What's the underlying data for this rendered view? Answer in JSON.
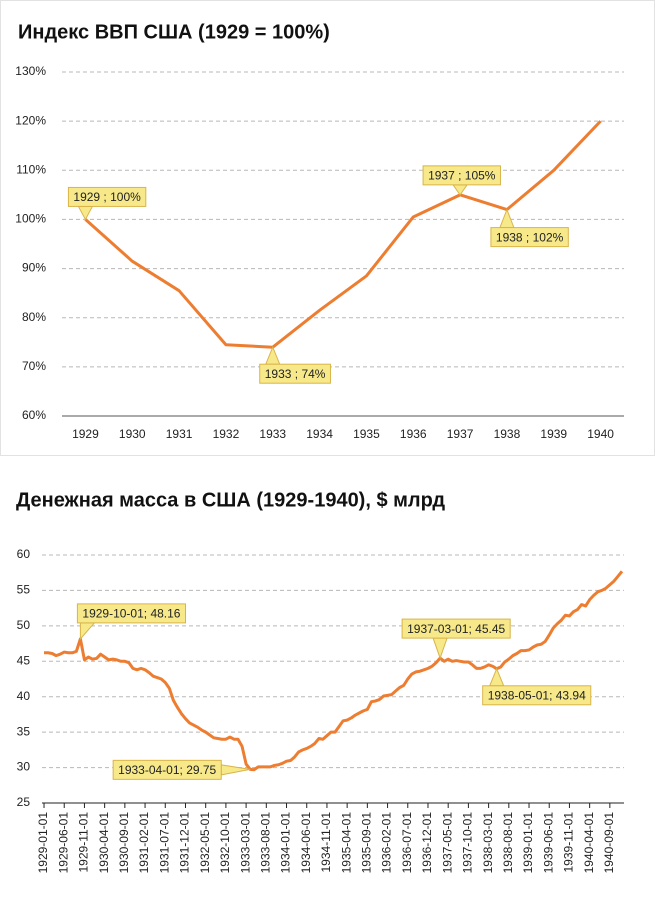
{
  "chart_data": [
    {
      "type": "line",
      "title": "Индекс ВВП США (1929 = 100%)",
      "categories": [
        "1929",
        "1930",
        "1931",
        "1932",
        "1933",
        "1934",
        "1935",
        "1936",
        "1937",
        "1938",
        "1939",
        "1940"
      ],
      "values": [
        100,
        91.5,
        85.5,
        74.5,
        74,
        81.5,
        88.5,
        100.5,
        105,
        102,
        110,
        120
      ],
      "value_labels": [
        "1929 ; 100%",
        null,
        null,
        null,
        "1933 ; 74%",
        null,
        null,
        null,
        "1937 ; 105%",
        "1938 ; 102%",
        null,
        null
      ],
      "color": "#ed7d31",
      "ylim": [
        60,
        130
      ],
      "yticks": [
        {
          "value": 60,
          "label": "60%"
        },
        {
          "value": 70,
          "label": "70%"
        },
        {
          "value": 80,
          "label": "80%"
        },
        {
          "value": 90,
          "label": "90%"
        },
        {
          "value": 100,
          "label": "100%"
        },
        {
          "value": 110,
          "label": "110%"
        },
        {
          "value": 120,
          "label": "120%"
        },
        {
          "value": 130,
          "label": "130%"
        }
      ],
      "grid": true
    },
    {
      "type": "line",
      "title": "Денежная масса в США (1929-1940), $ млрд",
      "categories": [
        "1929-01-01",
        null,
        null,
        null,
        null,
        "1929-06-01",
        null,
        null,
        null,
        null,
        "1929-11-01",
        null,
        null,
        null,
        null,
        "1930-04-01",
        null,
        null,
        null,
        null,
        "1930-09-01",
        null,
        null,
        null,
        null,
        "1931-02-01",
        null,
        null,
        null,
        null,
        "1931-07-01",
        null,
        null,
        null,
        null,
        "1931-12-01",
        null,
        null,
        null,
        null,
        "1932-05-01",
        null,
        null,
        null,
        null,
        "1932-10-01",
        null,
        null,
        null,
        null,
        "1933-03-01",
        null,
        null,
        null,
        null,
        "1933-08-01",
        null,
        null,
        null,
        null,
        "1934-01-01",
        null,
        null,
        null,
        null,
        "1934-06-01",
        null,
        null,
        null,
        null,
        "1934-11-01",
        null,
        null,
        null,
        null,
        "1935-04-01",
        null,
        null,
        null,
        null,
        "1935-09-01",
        null,
        null,
        null,
        null,
        "1936-02-01",
        null,
        null,
        null,
        null,
        "1936-07-01",
        null,
        null,
        null,
        null,
        "1936-12-01",
        null,
        null,
        null,
        null,
        "1937-05-01",
        null,
        null,
        null,
        null,
        "1937-10-01",
        null,
        null,
        null,
        null,
        "1938-03-01",
        null,
        null,
        null,
        null,
        "1938-08-01",
        null,
        null,
        null,
        null,
        "1939-01-01",
        null,
        null,
        null,
        null,
        "1939-06-01",
        null,
        null,
        null,
        null,
        "1939-11-01",
        null,
        null,
        null,
        null,
        "1940-04-01",
        null,
        null,
        null,
        null,
        "1940-09-01",
        null,
        null,
        null
      ],
      "values": [
        46.2,
        46.2,
        46.1,
        45.8,
        46.0,
        46.3,
        46.2,
        46.2,
        46.4,
        48.16,
        45.2,
        45.6,
        45.3,
        45.4,
        46.0,
        45.6,
        45.2,
        45.3,
        45.2,
        45.0,
        45.0,
        44.8,
        44.0,
        43.8,
        44.0,
        43.8,
        43.4,
        42.9,
        42.7,
        42.5,
        42.0,
        41.2,
        39.5,
        38.5,
        37.6,
        36.9,
        36.3,
        36.0,
        35.7,
        35.3,
        35.0,
        34.6,
        34.2,
        34.1,
        34.0,
        34.0,
        34.3,
        34.0,
        34.0,
        33.0,
        30.5,
        29.75,
        29.7,
        30.1,
        30.1,
        30.1,
        30.1,
        30.3,
        30.4,
        30.6,
        30.9,
        31.0,
        31.5,
        32.2,
        32.5,
        32.7,
        33.0,
        33.4,
        34.1,
        34.0,
        34.5,
        35.0,
        35.0,
        35.8,
        36.6,
        36.7,
        37.0,
        37.4,
        37.7,
        38.0,
        38.2,
        39.3,
        39.4,
        39.6,
        40.1,
        40.2,
        40.3,
        40.8,
        41.3,
        41.6,
        42.5,
        43.2,
        43.5,
        43.6,
        43.8,
        44.0,
        44.3,
        44.8,
        45.45,
        45.0,
        45.3,
        45.0,
        45.1,
        45.0,
        44.9,
        44.9,
        44.5,
        44.0,
        44.0,
        44.2,
        44.5,
        44.3,
        43.94,
        44.2,
        44.9,
        45.3,
        45.8,
        46.1,
        46.5,
        46.5,
        46.6,
        47.0,
        47.3,
        47.4,
        47.8,
        48.7,
        49.7,
        50.3,
        50.8,
        51.5,
        51.4,
        52.0,
        52.3,
        53.0,
        52.8,
        53.7,
        54.3,
        54.8,
        55.0,
        55.3,
        55.8,
        56.3,
        57.0,
        57.7
      ],
      "value_labels": [
        null,
        null,
        null,
        null,
        null,
        null,
        null,
        null,
        null,
        "1929-10-01; 48.16",
        null,
        null,
        null,
        null,
        null,
        null,
        null,
        null,
        null,
        null,
        null,
        null,
        null,
        null,
        null,
        null,
        null,
        null,
        null,
        null,
        null,
        null,
        null,
        null,
        null,
        null,
        null,
        null,
        null,
        null,
        null,
        null,
        null,
        null,
        null,
        null,
        null,
        null,
        null,
        null,
        null,
        "1933-04-01; 29.75",
        null,
        null,
        null,
        null,
        null,
        null,
        null,
        null,
        null,
        null,
        null,
        null,
        null,
        null,
        null,
        null,
        null,
        null,
        null,
        null,
        null,
        null,
        null,
        null,
        null,
        null,
        null,
        null,
        null,
        null,
        null,
        null,
        null,
        null,
        null,
        null,
        null,
        null,
        null,
        null,
        null,
        null,
        null,
        null,
        null,
        null,
        "1937-03-01; 45.45",
        null,
        null,
        null,
        null,
        null,
        null,
        null,
        null,
        null,
        null,
        null,
        null,
        null,
        "1938-05-01; 43.94",
        null,
        null,
        null,
        null,
        null,
        null,
        null,
        null,
        null,
        null,
        null,
        null,
        null,
        null,
        null,
        null,
        null,
        null,
        null,
        null,
        null,
        null,
        null,
        null,
        null,
        null,
        null,
        null,
        null,
        null,
        null
      ],
      "color": "#ed7d31",
      "ylim": [
        25,
        60
      ],
      "yticks": [
        25,
        30,
        35,
        40,
        45,
        50,
        55,
        60
      ],
      "grid": true
    }
  ]
}
